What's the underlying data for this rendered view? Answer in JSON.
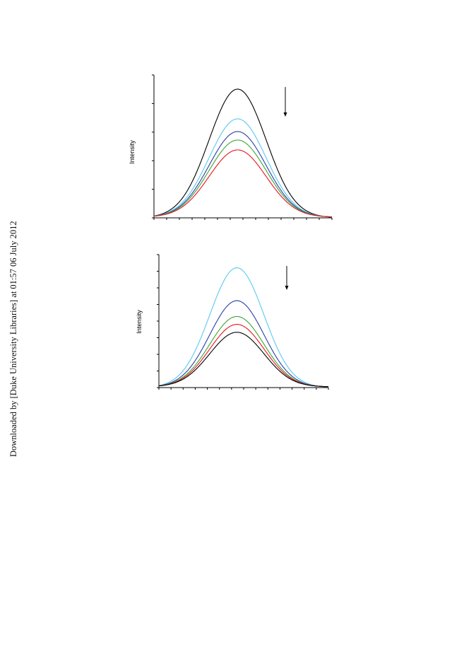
{
  "watermark": "Downloaded by [Duke University Libraries] at 01:57 06 July 2012",
  "chart_data": [
    {
      "type": "line",
      "ylabel": "Intensity",
      "xlabel": "",
      "title": "",
      "x_ticks": 14,
      "y_ticks": 5,
      "ylim": [
        0,
        1.0
      ],
      "peak_center": 0.47,
      "arrow": "down",
      "series": [
        {
          "color": "#000000",
          "peak": 0.9
        },
        {
          "color": "#5bc8f0",
          "peak": 0.69
        },
        {
          "color": "#2a3fa8",
          "peak": 0.6
        },
        {
          "color": "#3da535",
          "peak": 0.54
        },
        {
          "color": "#e8141c",
          "peak": 0.47
        }
      ]
    },
    {
      "type": "line",
      "ylabel": "Intensity",
      "xlabel": "",
      "title": "",
      "x_ticks": 14,
      "y_ticks": 8,
      "ylim": [
        0,
        1.0
      ],
      "peak_center": 0.46,
      "arrow": "down",
      "series": [
        {
          "color": "#5bc8f0",
          "peak": 0.9
        },
        {
          "color": "#2a3fa8",
          "peak": 0.65
        },
        {
          "color": "#3da535",
          "peak": 0.53
        },
        {
          "color": "#e8141c",
          "peak": 0.47
        },
        {
          "color": "#000000",
          "peak": 0.41
        }
      ]
    }
  ]
}
